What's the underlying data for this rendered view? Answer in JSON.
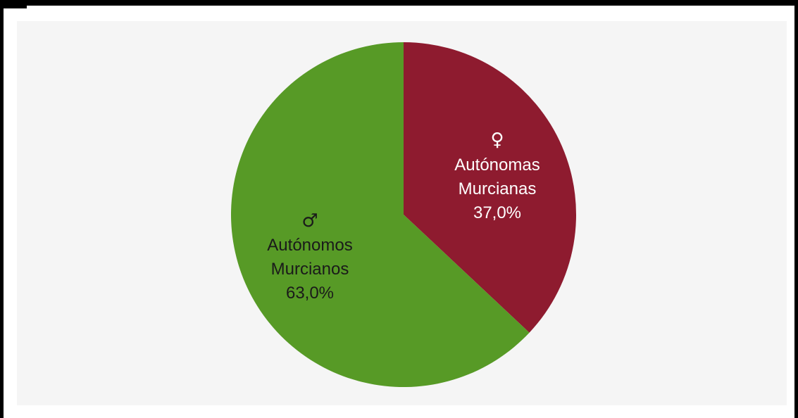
{
  "chart_data": {
    "type": "pie",
    "title": "",
    "slices": [
      {
        "icon": "♀",
        "icon_name": "female-symbol-icon",
        "label_line1": "Autónomas",
        "label_line2": "Murcianas",
        "value": 37.0,
        "value_label": "37,0%",
        "color": "#8e1b2f",
        "text_color": "#ffffff"
      },
      {
        "icon": "♂",
        "icon_name": "male-symbol-icon",
        "label_line1": "Autónomos",
        "label_line2": "Murcianos",
        "value": 63.0,
        "value_label": "63,0%",
        "color": "#579a26",
        "text_color": "#1a1a1a"
      }
    ],
    "start_angle_deg": 0,
    "direction": "clockwise",
    "legend": "none"
  },
  "colors": {
    "background": "#f5f5f5",
    "frame": "#000000"
  }
}
